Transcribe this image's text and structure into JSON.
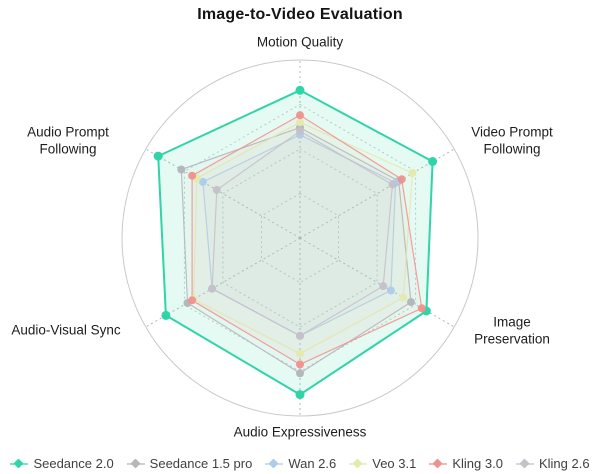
{
  "title": "Image-to-Video Evaluation",
  "chart_data": {
    "type": "radar",
    "title": "Image-to-Video Evaluation",
    "categories": [
      "Motion Quality",
      "Video Prompt Following",
      "Image Preservation",
      "Audio Expressiveness",
      "Audio-Visual Sync",
      "Audio Prompt Following"
    ],
    "scale": {
      "min": 0,
      "max": 1,
      "gridlines": [
        0.25,
        0.5,
        0.75,
        1
      ]
    },
    "grid_color": "#c6cacd",
    "axis_color": "#b2b6bb",
    "legend_position": "bottom",
    "series": [
      {
        "name": "Seedance 2.0",
        "color": "#2fd4a8",
        "fill_opacity": 0.12,
        "line_width": 2,
        "line_opacity": 1,
        "marker_radius": 4.5,
        "values": [
          0.83,
          0.86,
          0.82,
          0.88,
          0.87,
          0.92
        ]
      },
      {
        "name": "Seedance 1.5 pro",
        "color": "#b5b8ba",
        "fill_opacity": 0.05,
        "line_width": 1.2,
        "line_opacity": 0.9,
        "marker_radius": 4,
        "values": [
          0.62,
          0.64,
          0.72,
          0.76,
          0.73,
          0.77
        ]
      },
      {
        "name": "Wan 2.6",
        "color": "#aecbe9",
        "fill_opacity": 0.05,
        "line_width": 1.2,
        "line_opacity": 0.85,
        "marker_radius": 4,
        "values": [
          0.58,
          0.62,
          0.59,
          0.55,
          0.57,
          0.63
        ]
      },
      {
        "name": "Veo 3.1",
        "color": "#e4e9ad",
        "fill_opacity": 0.06,
        "line_width": 1.2,
        "line_opacity": 0.85,
        "marker_radius": 4,
        "values": [
          0.65,
          0.73,
          0.67,
          0.65,
          0.69,
          0.67
        ]
      },
      {
        "name": "Kling 3.0",
        "color": "#f0918c",
        "fill_opacity": 0.05,
        "line_width": 1.2,
        "line_opacity": 0.85,
        "marker_radius": 4,
        "values": [
          0.69,
          0.66,
          0.79,
          0.71,
          0.7,
          0.7
        ]
      },
      {
        "name": "Kling 2.6",
        "color": "#c6c0c8",
        "fill_opacity": 0.04,
        "line_width": 1.2,
        "line_opacity": 0.85,
        "marker_radius": 4,
        "values": [
          0.6,
          0.6,
          0.54,
          0.55,
          0.57,
          0.54
        ]
      }
    ]
  }
}
